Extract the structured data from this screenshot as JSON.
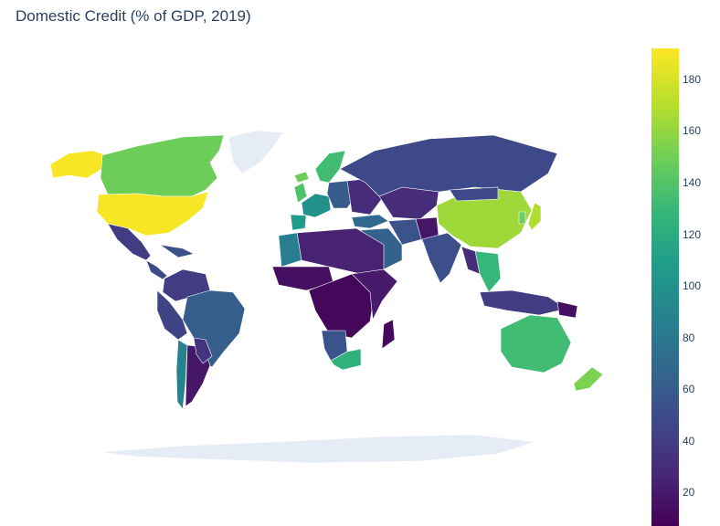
{
  "title": "Domestic Credit (% of GDP, 2019)",
  "colorbar": {
    "ticks": [
      "180",
      "160",
      "140",
      "120",
      "100",
      "80",
      "60",
      "40",
      "20"
    ],
    "min": 7,
    "max": 192,
    "colorscale": "viridis"
  },
  "colors": {
    "no_data": "#e5ecf6",
    "border": "#ffffff",
    "text": "#2a3f5f"
  },
  "regions": [
    {
      "name": "Alaska (United States)",
      "value": 190
    },
    {
      "name": "Canada",
      "value": 150
    },
    {
      "name": "United States",
      "value": 190
    },
    {
      "name": "Greenland",
      "value": null
    },
    {
      "name": "Mexico",
      "value": 40
    },
    {
      "name": "Central America",
      "value": 50
    },
    {
      "name": "Caribbean",
      "value": 55
    },
    {
      "name": "Colombia & Venezuela",
      "value": 40
    },
    {
      "name": "Brazil",
      "value": 62
    },
    {
      "name": "Peru & Ecuador",
      "value": 45
    },
    {
      "name": "Chile",
      "value": 90
    },
    {
      "name": "Argentina",
      "value": 18
    },
    {
      "name": "Uruguay & Paraguay",
      "value": 35
    },
    {
      "name": "Iceland",
      "value": 150
    },
    {
      "name": "Scandinavia",
      "value": 135
    },
    {
      "name": "United Kingdom",
      "value": 140
    },
    {
      "name": "Western Europe",
      "value": 100
    },
    {
      "name": "Iberia",
      "value": 110
    },
    {
      "name": "Central Europe",
      "value": 60
    },
    {
      "name": "Eastern Europe",
      "value": 30
    },
    {
      "name": "Russia",
      "value": 48
    },
    {
      "name": "Kazakhstan & Central Asia",
      "value": 30
    },
    {
      "name": "Turkey",
      "value": 70
    },
    {
      "name": "Middle East",
      "value": 65
    },
    {
      "name": "Iran",
      "value": 55
    },
    {
      "name": "Afghanistan & Pakistan",
      "value": 18
    },
    {
      "name": "India",
      "value": 52
    },
    {
      "name": "China",
      "value": 165
    },
    {
      "name": "Mongolia",
      "value": 48
    },
    {
      "name": "Japan",
      "value": 170
    },
    {
      "name": "Korea",
      "value": 150
    },
    {
      "name": "Southeast Asia",
      "value": 130
    },
    {
      "name": "Myanmar",
      "value": 30
    },
    {
      "name": "Malaysia & Indonesia",
      "value": 40
    },
    {
      "name": "Papua New Guinea",
      "value": 15
    },
    {
      "name": "North Africa",
      "value": 25
    },
    {
      "name": "Morocco",
      "value": 85
    },
    {
      "name": "West Africa",
      "value": 15
    },
    {
      "name": "Central Africa",
      "value": 10
    },
    {
      "name": "East Africa",
      "value": 20
    },
    {
      "name": "Namibia & Botswana",
      "value": 55
    },
    {
      "name": "South Africa",
      "value": 125
    },
    {
      "name": "Madagascar",
      "value": 12
    },
    {
      "name": "Australia",
      "value": 135
    },
    {
      "name": "New Zealand",
      "value": 155
    },
    {
      "name": "Antarctica",
      "value": null
    }
  ]
}
